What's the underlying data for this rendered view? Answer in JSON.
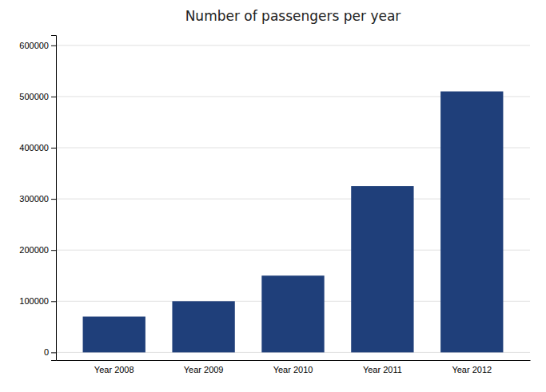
{
  "chart_data": {
    "type": "bar",
    "title": "Number of passengers per year",
    "categories": [
      "Year 2008",
      "Year 2009",
      "Year 2010",
      "Year 2011",
      "Year 2012"
    ],
    "values": [
      70000,
      100000,
      150000,
      325000,
      510000
    ],
    "color": "#1f3f7a",
    "ylim": [
      -15000,
      620000
    ],
    "yticks": [
      0,
      100000,
      200000,
      300000,
      400000,
      500000,
      600000
    ],
    "grid": true
  }
}
